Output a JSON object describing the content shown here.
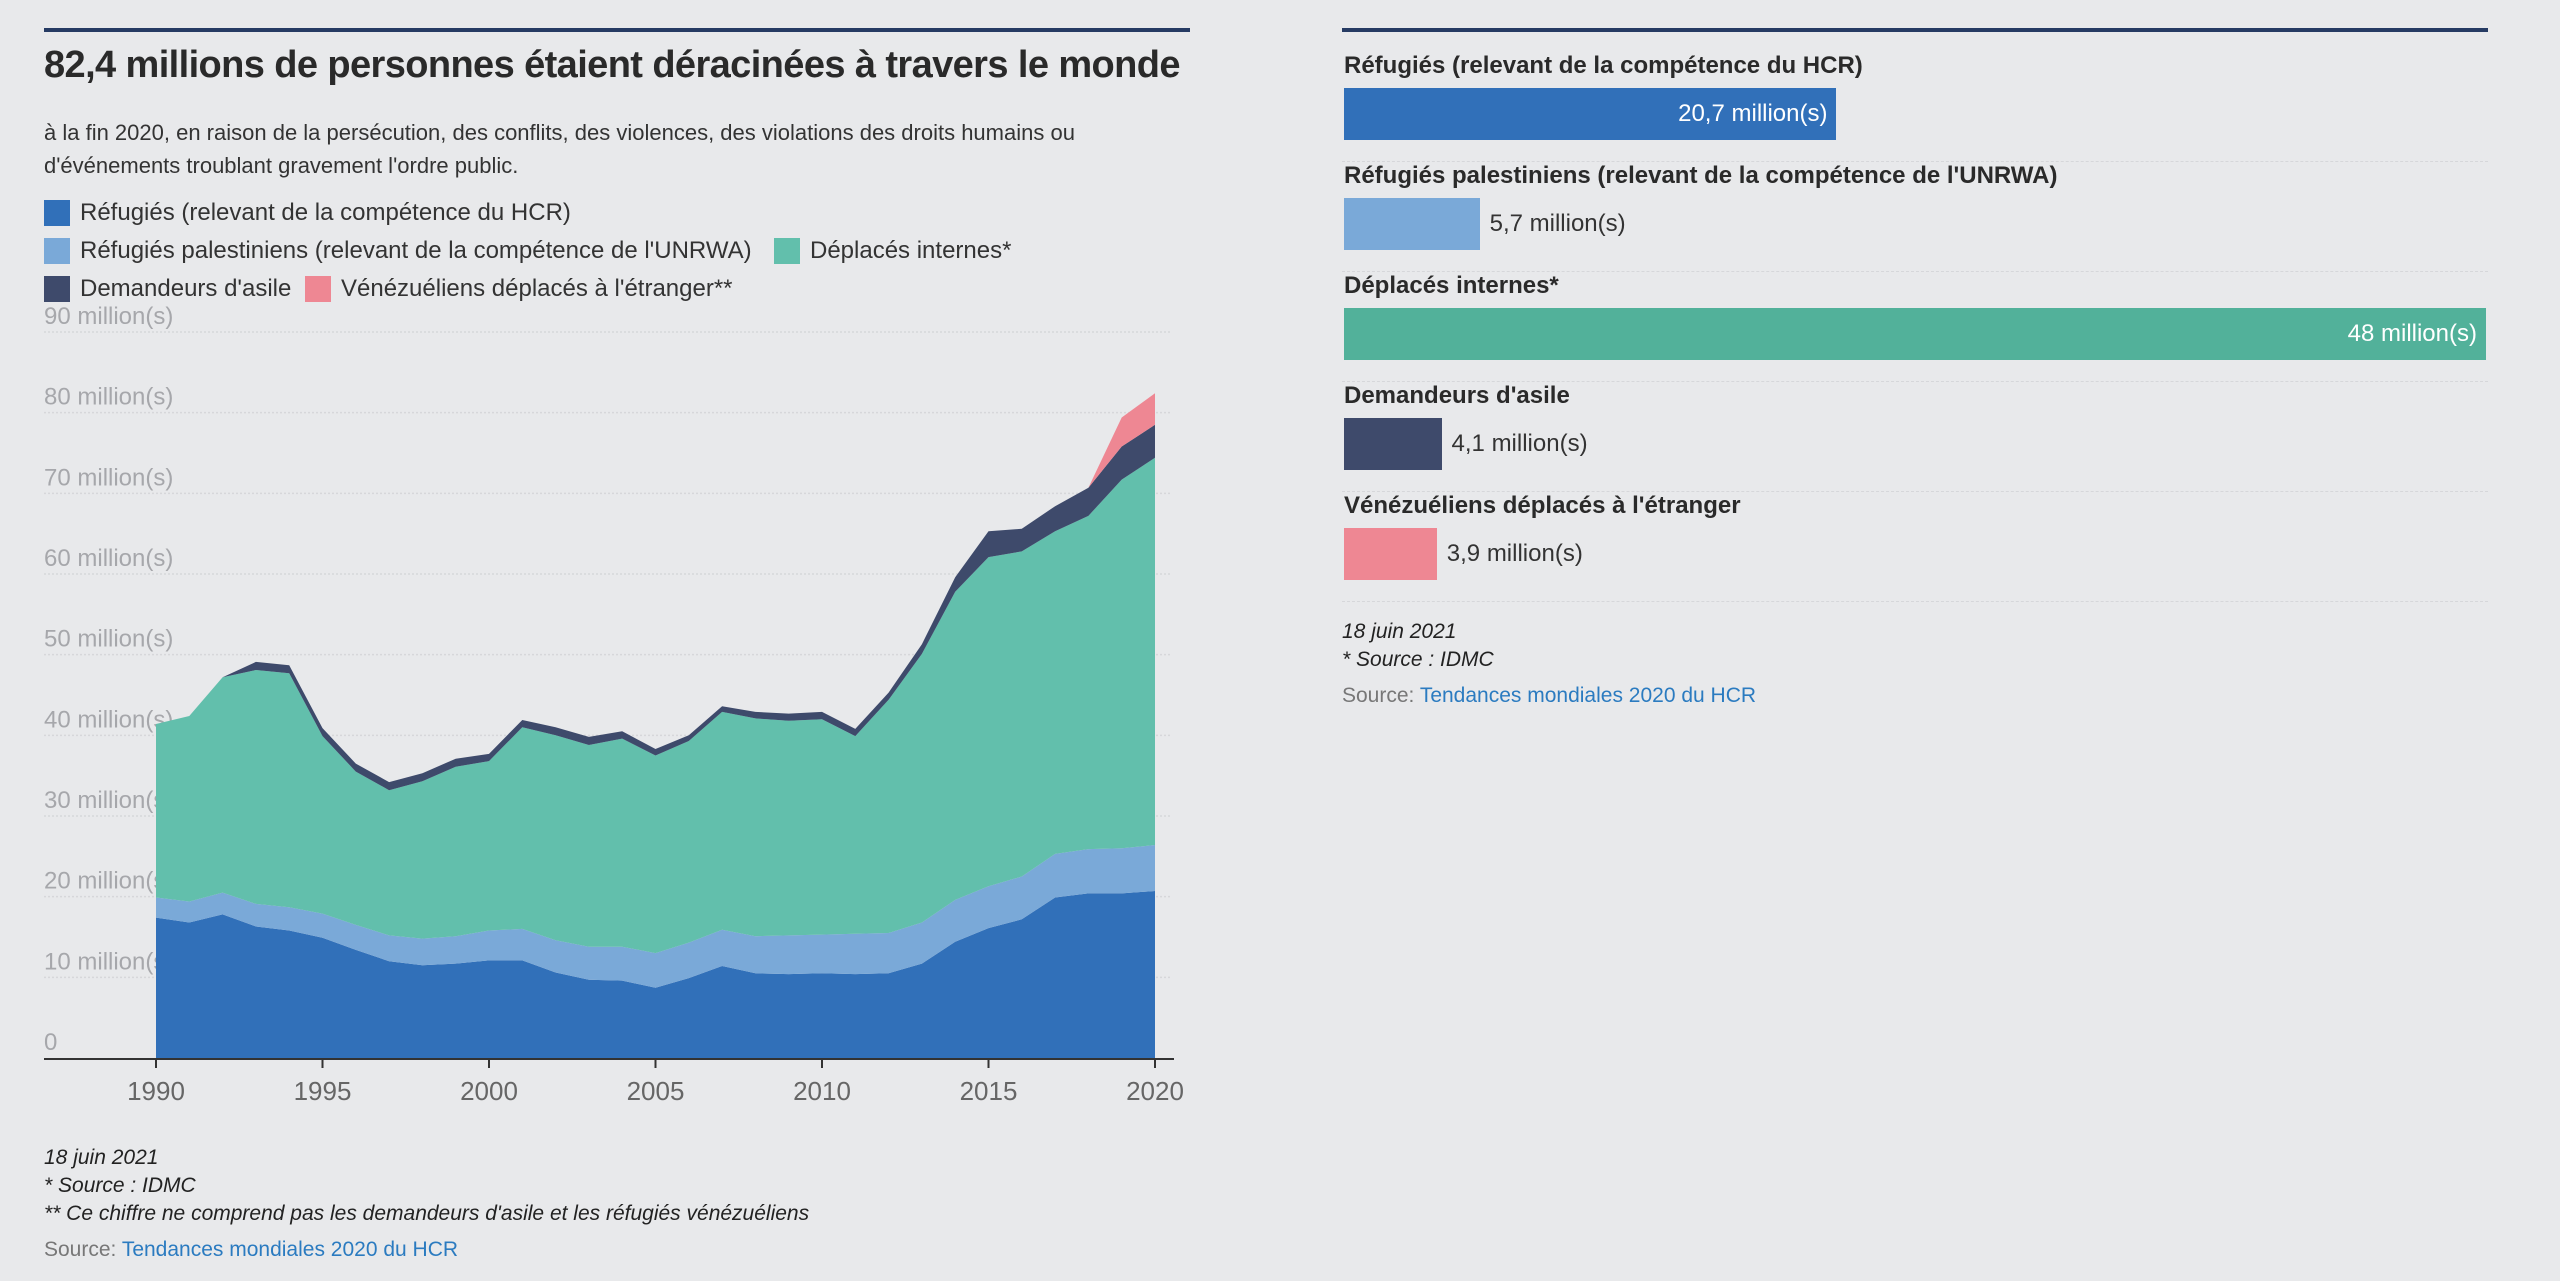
{
  "left": {
    "title": "82,4 millions de personnes étaient déracinées à travers le monde",
    "subtitle": "à la fin 2020, en raison de la persécution, des conflits, des violences, des violations des droits humains ou d'événements troublant gravement l'ordre public.",
    "legend": [
      {
        "label": "Réfugiés (relevant de la compétence du HCR)",
        "color": "#3170b9"
      },
      {
        "label": "Réfugiés palestiniens (relevant de la compétence de l'UNRWA)",
        "color": "#7aa9d8"
      },
      {
        "label": "Déplacés internes*",
        "color": "#62bfac"
      },
      {
        "label": "Demandeurs d'asile",
        "color": "#3e4a6b"
      },
      {
        "label": "Vénézuéliens déplacés à l'étranger**",
        "color": "#ee8793"
      }
    ],
    "notes": {
      "date": "18 juin 2021",
      "source_note": "* Source : IDMC",
      "footnote": "** Ce chiffre ne comprend pas les demandeurs d'asile et les réfugiés vénézuéliens",
      "source_label": "Source: ",
      "source_link": "Tendances mondiales 2020 du HCR"
    }
  },
  "right": {
    "notes": {
      "date": "18 juin 2021",
      "source_note": "* Source : IDMC",
      "source_label": "Source: ",
      "source_link": "Tendances mondiales 2020 du HCR"
    }
  },
  "chart_data": [
    {
      "type": "area",
      "stacked": true,
      "title": "82,4 millions de personnes étaient déracinées à travers le monde",
      "x": [
        1990,
        1991,
        1992,
        1993,
        1994,
        1995,
        1996,
        1997,
        1998,
        1999,
        2000,
        2001,
        2002,
        2003,
        2004,
        2005,
        2006,
        2007,
        2008,
        2009,
        2010,
        2011,
        2012,
        2013,
        2014,
        2015,
        2016,
        2017,
        2018,
        2019,
        2020
      ],
      "xticks": [
        1990,
        1995,
        2000,
        2005,
        2010,
        2015,
        2020
      ],
      "ylim": [
        0,
        90
      ],
      "yticks": [
        0,
        10,
        20,
        30,
        40,
        50,
        60,
        70,
        80,
        90
      ],
      "ytick_labels": [
        "0",
        "10 million(s)",
        "20 million(s)",
        "30 million(s)",
        "40 million(s)",
        "50 million(s)",
        "60 million(s)",
        "70 million(s)",
        "80 million(s)",
        "90 million(s)"
      ],
      "series": [
        {
          "name": "Réfugiés (relevant de la compétence du HCR)",
          "color": "#3170b9",
          "values": [
            17.4,
            16.8,
            17.8,
            16.3,
            15.8,
            14.9,
            13.4,
            12.0,
            11.5,
            11.7,
            12.1,
            12.1,
            10.6,
            9.7,
            9.6,
            8.7,
            9.9,
            11.4,
            10.5,
            10.4,
            10.5,
            10.4,
            10.5,
            11.7,
            14.4,
            16.1,
            17.2,
            19.9,
            20.4,
            20.4,
            20.7
          ]
        },
        {
          "name": "Réfugiés palestiniens (relevant de la compétence de l'UNRWA)",
          "color": "#7aa9d8",
          "values": [
            2.5,
            2.6,
            2.7,
            2.8,
            2.9,
            3.0,
            3.1,
            3.2,
            3.3,
            3.4,
            3.7,
            3.9,
            4.0,
            4.1,
            4.2,
            4.3,
            4.4,
            4.5,
            4.6,
            4.8,
            4.8,
            5.0,
            5.0,
            5.1,
            5.2,
            5.2,
            5.3,
            5.4,
            5.5,
            5.6,
            5.7
          ]
        },
        {
          "name": "Déplacés internes*",
          "color": "#62bfac",
          "values": [
            21.5,
            23.0,
            26.7,
            29.0,
            29.0,
            22.0,
            19.0,
            18.0,
            19.5,
            21.0,
            21.0,
            25.0,
            25.4,
            25.0,
            25.8,
            24.5,
            25.0,
            27.0,
            27.0,
            26.6,
            26.7,
            24.5,
            28.9,
            33.3,
            38.2,
            40.8,
            40.3,
            40.0,
            41.3,
            45.7,
            48.0
          ]
        },
        {
          "name": "Demandeurs d'asile",
          "color": "#3e4a6b",
          "values": [
            0,
            0,
            0,
            1.0,
            1.0,
            1.0,
            1.0,
            1.0,
            1.0,
            1.0,
            0.9,
            0.9,
            1.0,
            1.0,
            0.9,
            0.8,
            0.7,
            0.7,
            0.8,
            0.9,
            0.9,
            0.9,
            0.9,
            1.2,
            1.8,
            3.2,
            2.8,
            3.1,
            3.5,
            4.1,
            4.1
          ]
        },
        {
          "name": "Vénézuéliens déplacés à l'étranger**",
          "color": "#ee8793",
          "values": [
            0,
            0,
            0,
            0,
            0,
            0,
            0,
            0,
            0,
            0,
            0,
            0,
            0,
            0,
            0,
            0,
            0,
            0,
            0,
            0,
            0,
            0,
            0,
            0,
            0,
            0,
            0,
            0,
            0,
            3.6,
            3.9
          ]
        }
      ]
    },
    {
      "type": "bar",
      "orientation": "horizontal",
      "xlim": [
        0,
        48
      ],
      "bars": [
        {
          "name": "Réfugiés (relevant de la compétence du HCR)",
          "value": 20.7,
          "label": "20,7 million(s)",
          "color": "#3170b9",
          "label_inside": true
        },
        {
          "name": "Réfugiés palestiniens (relevant de la compétence de l'UNRWA)",
          "value": 5.7,
          "label": "5,7 million(s)",
          "color": "#7aa9d8",
          "label_inside": false
        },
        {
          "name": "Déplacés internes*",
          "value": 48,
          "label": "48 million(s)",
          "color": "#52b19a",
          "label_inside": true
        },
        {
          "name": "Demandeurs d'asile",
          "value": 4.1,
          "label": "4,1 million(s)",
          "color": "#3e4a6b",
          "label_inside": false
        },
        {
          "name": "Vénézuéliens déplacés à l'étranger",
          "value": 3.9,
          "label": "3,9 million(s)",
          "color": "#ee8793",
          "label_inside": false
        }
      ]
    }
  ]
}
